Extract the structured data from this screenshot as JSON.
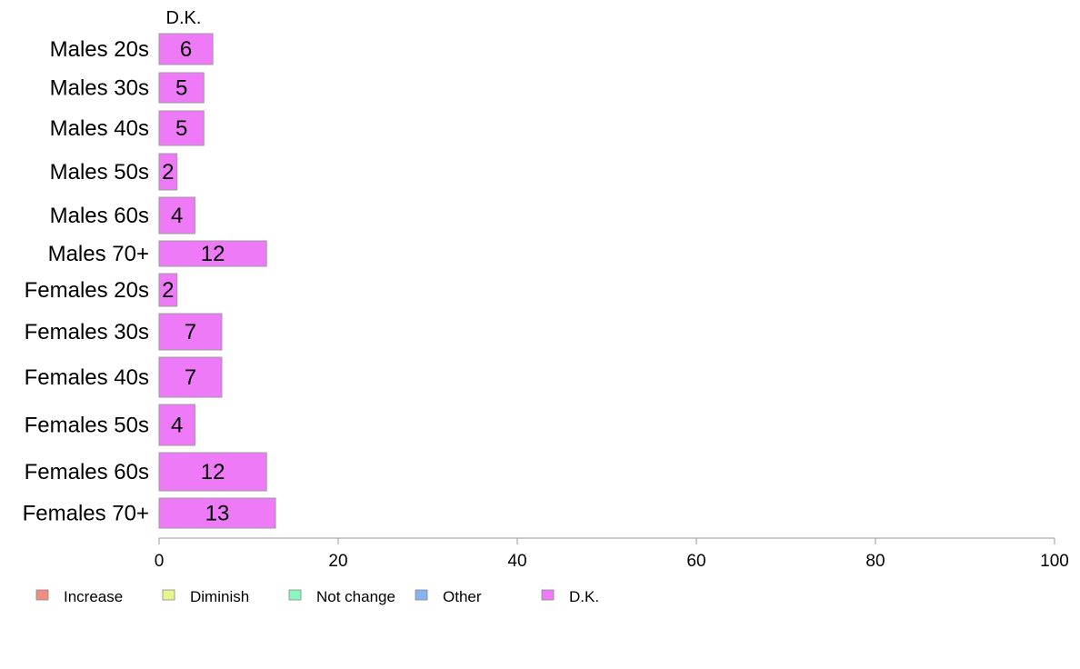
{
  "chart_data": {
    "type": "bar",
    "orientation": "horizontal",
    "column_header": "D.K.",
    "categories": [
      "Males 20s",
      "Males 30s",
      "Males 40s",
      "Males 50s",
      "Males 60s",
      "Males 70+",
      "Females 20s",
      "Females 30s",
      "Females 40s",
      "Females 50s",
      "Females 60s",
      "Females 70+"
    ],
    "series": [
      {
        "name": "D.K.",
        "color": "#EE7AF8",
        "values": [
          6,
          5,
          5,
          2,
          4,
          12,
          2,
          7,
          7,
          4,
          12,
          13
        ]
      }
    ],
    "data_labels": [
      "6",
      "5",
      "5",
      "2",
      "4",
      "12",
      "2",
      "7",
      "7",
      "4",
      "12",
      "13"
    ],
    "xlim": [
      0,
      100
    ],
    "xticks": [
      0,
      20,
      40,
      60,
      80,
      100
    ],
    "grid": false,
    "legend_position": "bottom-left",
    "legend": [
      {
        "label": "Increase",
        "color": "#F08C84"
      },
      {
        "label": "Diminish",
        "color": "#E8F58C"
      },
      {
        "label": "Not change",
        "color": "#8CF5BE"
      },
      {
        "label": "Other",
        "color": "#86B3F0"
      },
      {
        "label": "D.K.",
        "color": "#EE7AF8"
      }
    ]
  }
}
